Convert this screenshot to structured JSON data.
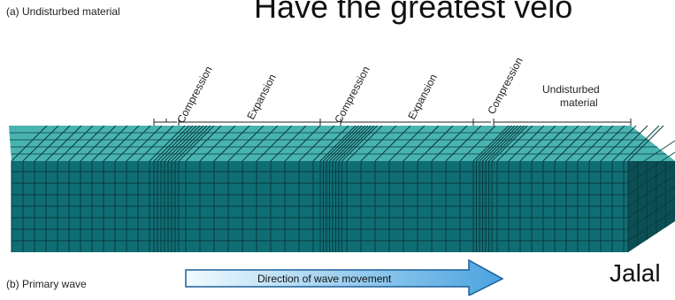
{
  "headline": "Have the greatest velo",
  "footer_name": "Jalal",
  "diagram": {
    "panel_a_label": "(a) Undisturbed material",
    "panel_b_label": "(b) Primary wave",
    "direction_label": "Direction of wave movement",
    "zone_labels": [
      "Compression",
      "Expansion",
      "Compression",
      "Expansion",
      "Compression"
    ],
    "undisturbed_line1": "Undisturbed",
    "undisturbed_line2": "material"
  },
  "colors": {
    "block_front": "#0f6e74",
    "block_top": "#49b3b0",
    "block_side": "#0b4f55",
    "grid_line": "#083b40",
    "arrow_fill_start": "#f1fbff",
    "arrow_fill_end": "#4aa3df",
    "arrow_stroke": "#1a5e9a"
  }
}
